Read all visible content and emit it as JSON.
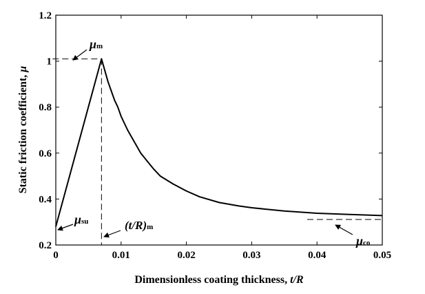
{
  "chart_data": {
    "type": "line",
    "xlabel": "Dimensionless coating thickness, t/R",
    "xlabel_parts": {
      "text": "Dimensionless coating thickness, ",
      "var": "t/R"
    },
    "ylabel": "Static friction coefficient, μ",
    "ylabel_parts": {
      "text": "Static friction coefficient, ",
      "var": "μ"
    },
    "xlim": [
      0,
      0.05
    ],
    "ylim": [
      0.2,
      1.2
    ],
    "xticks": [
      0,
      0.01,
      0.02,
      0.03,
      0.04,
      0.05
    ],
    "xtick_labels": [
      "0",
      "0.01",
      "0.02",
      "0.03",
      "0.04",
      "0.05"
    ],
    "yticks": [
      0.2,
      0.4,
      0.6,
      0.8,
      1.0,
      1.2
    ],
    "ytick_labels": [
      "0.2",
      "0.4",
      "0.6",
      "0.8",
      "1",
      "1.2"
    ],
    "grid": false,
    "legend": "none",
    "series": [
      {
        "x": [
          0,
          0.007,
          0.0075,
          0.008,
          0.0085,
          0.009,
          0.0095,
          0.01,
          0.011,
          0.012,
          0.013,
          0.014,
          0.015,
          0.016,
          0.018,
          0.02,
          0.022,
          0.025,
          0.028,
          0.03,
          0.035,
          0.04,
          0.045,
          0.05
        ],
        "y": [
          0.28,
          1.01,
          0.96,
          0.91,
          0.87,
          0.83,
          0.8,
          0.76,
          0.7,
          0.65,
          0.6,
          0.565,
          0.53,
          0.5,
          0.465,
          0.435,
          0.41,
          0.385,
          0.37,
          0.362,
          0.348,
          0.338,
          0.333,
          0.328
        ],
        "color": "#000000"
      }
    ],
    "annotations": [
      {
        "name": "mu-m",
        "symbol": "μ",
        "sub": "m",
        "x": 0.007,
        "y": 1.01
      },
      {
        "name": "mu-su",
        "symbol": "μ",
        "sub": "su",
        "x": 0,
        "y": 0.28
      },
      {
        "name": "t-over-r-m",
        "symbol": "(t/R)",
        "sub": "m",
        "x": 0.007,
        "y": 0.2
      },
      {
        "name": "mu-co",
        "symbol": "μ",
        "sub": "co",
        "x": 0.042,
        "y": 0.311
      }
    ],
    "reference_lines": {
      "mu_m_hline": {
        "y": 1.01,
        "x0": -0.0005,
        "x1": 0.007
      },
      "t_m_vline": {
        "x": 0.007,
        "y0": 0.2,
        "y1": 1.01
      },
      "mu_co_hline": {
        "y": 0.311,
        "x0": 0.0385,
        "x1": 0.05
      }
    }
  }
}
